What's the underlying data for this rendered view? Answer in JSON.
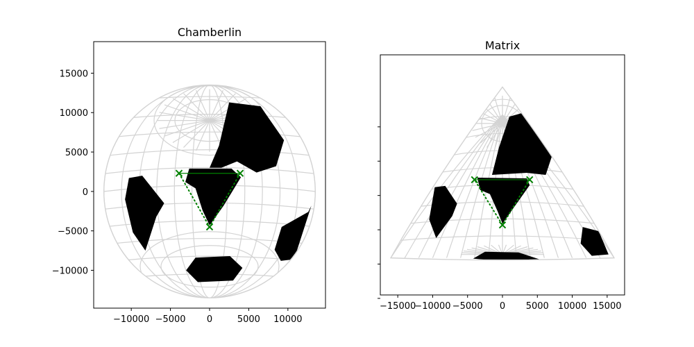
{
  "chart_data": [
    {
      "type": "map",
      "title": "Chamberlin",
      "x_ticks": [
        "−10000",
        "−5000",
        "0",
        "5000",
        "10000"
      ],
      "x_tick_values": [
        -10000,
        -5000,
        0,
        5000,
        10000
      ],
      "y_ticks": [
        "15000",
        "10000",
        "5000",
        "0",
        "−5000",
        "−10000"
      ],
      "y_tick_values": [
        15000,
        10000,
        5000,
        0,
        -5000,
        -10000
      ],
      "xlim": [
        -14800,
        14800
      ],
      "ylim": [
        -14800,
        19000
      ],
      "outline_radius": 13500,
      "outline_center": [
        0,
        0
      ],
      "control_points": [
        {
          "x": -3900,
          "y": 2300
        },
        {
          "x": 3900,
          "y": 2300
        },
        {
          "x": 0,
          "y": -4500
        }
      ],
      "colors": {
        "graticule": "#d3d3d3",
        "land": "#000000",
        "marker": "#008000"
      }
    },
    {
      "type": "map",
      "title": "Matrix",
      "x_ticks": [
        "−15000",
        "−10000",
        "−5000",
        "0",
        "5000",
        "10000",
        "15000"
      ],
      "x_tick_values": [
        -15000,
        -10000,
        -5000,
        0,
        5000,
        10000,
        15000
      ],
      "y_ticks": [
        "",
        "",
        "",
        "",
        "",
        ""
      ],
      "y_tick_values": [
        10000,
        5000,
        0,
        -5000,
        -10000,
        -15000
      ],
      "xlim": [
        -17500,
        17500
      ],
      "ylim": [
        -14500,
        20500
      ],
      "outline_triangle": [
        [
          0,
          15800
        ],
        [
          -16000,
          -9100
        ],
        [
          16000,
          -9100
        ]
      ],
      "control_points": [
        {
          "x": -4000,
          "y": 2300
        },
        {
          "x": 3900,
          "y": 2300
        },
        {
          "x": 0,
          "y": -4300
        }
      ],
      "colors": {
        "graticule": "#d3d3d3",
        "land": "#000000",
        "marker": "#008000"
      }
    }
  ]
}
